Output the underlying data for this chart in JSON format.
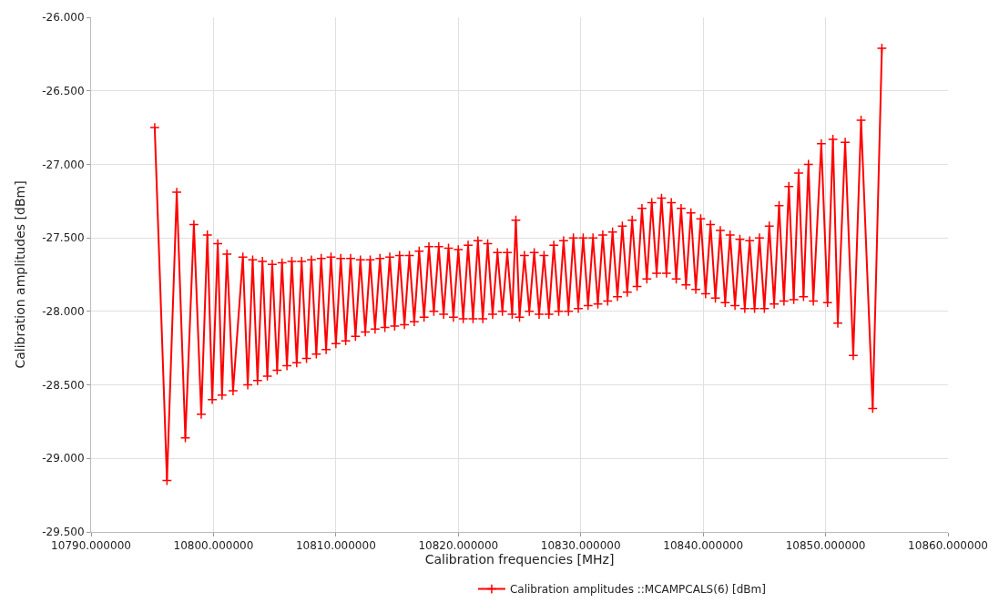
{
  "chart_data": {
    "type": "line",
    "xlabel": "Calibration frequencies [MHz]",
    "ylabel": "Calibration amplitudes [dBm]",
    "xlim": [
      10790,
      10860
    ],
    "xticks": [
      {
        "value": 10790,
        "label": "10790.000000"
      },
      {
        "value": 10800,
        "label": "10800.000000"
      },
      {
        "value": 10810,
        "label": "10810.000000"
      },
      {
        "value": 10820,
        "label": "10820.000000"
      },
      {
        "value": 10830,
        "label": "10830.000000"
      },
      {
        "value": 10840,
        "label": "10840.000000"
      },
      {
        "value": 10850,
        "label": "10850.000000"
      },
      {
        "value": 10860,
        "label": "10860.000000"
      }
    ],
    "ylim": [
      -29.5,
      -26
    ],
    "yticks": [
      {
        "value": -29.5,
        "label": "-29.500"
      },
      {
        "value": -29,
        "label": "-29.000"
      },
      {
        "value": -28.5,
        "label": "-28.500"
      },
      {
        "value": -28,
        "label": "-28.000"
      },
      {
        "value": -27.5,
        "label": "-27.500"
      },
      {
        "value": -27,
        "label": "-27.000"
      },
      {
        "value": -26.5,
        "label": "-26.500"
      },
      {
        "value": -26,
        "label": "-26.000"
      }
    ],
    "grid": true,
    "legend": "bottom",
    "marker": "cross",
    "line_style": "solid",
    "series": [
      {
        "name": "Calibration amplitudes ::MCAMPCALS(6) [dBm]",
        "color": "#ff0000",
        "x": [
          10795.2,
          10796.2,
          10797.0,
          10797.7,
          10798.4,
          10799.0,
          10799.5,
          10799.9,
          10800.35,
          10800.7,
          10801.1,
          10801.6,
          10802.4,
          10802.8,
          10803.2,
          10803.6,
          10804.0,
          10804.4,
          10804.8,
          10805.2,
          10805.6,
          10806.0,
          10806.4,
          10806.8,
          10807.2,
          10807.6,
          10808.0,
          10808.4,
          10808.8,
          10809.2,
          10809.6,
          10810.0,
          10810.4,
          10810.8,
          10811.2,
          10811.6,
          10812.0,
          10812.4,
          10812.8,
          10813.2,
          10813.6,
          10814.0,
          10814.4,
          10814.8,
          10815.2,
          10815.6,
          10816.0,
          10816.4,
          10816.8,
          10817.2,
          10817.6,
          10818.0,
          10818.4,
          10818.8,
          10819.2,
          10819.6,
          10820.0,
          10820.4,
          10820.8,
          10821.2,
          10821.6,
          10822.0,
          10822.4,
          10822.8,
          10823.2,
          10823.6,
          10824.0,
          10824.4,
          10824.7,
          10825.0,
          10825.4,
          10825.8,
          10826.2,
          10826.6,
          10827.0,
          10827.4,
          10827.8,
          10828.2,
          10828.6,
          10829.0,
          10829.4,
          10829.8,
          10830.2,
          10830.6,
          10831.0,
          10831.4,
          10831.8,
          10832.2,
          10832.6,
          10833.0,
          10833.4,
          10833.8,
          10834.2,
          10834.6,
          10835.0,
          10835.4,
          10835.8,
          10836.2,
          10836.6,
          10837.0,
          10837.4,
          10837.8,
          10838.2,
          10838.6,
          10839.0,
          10839.4,
          10839.8,
          10840.2,
          10840.6,
          10841.0,
          10841.4,
          10841.8,
          10842.2,
          10842.6,
          10843.0,
          10843.4,
          10843.8,
          10844.2,
          10844.6,
          10845.0,
          10845.4,
          10845.8,
          10846.2,
          10846.6,
          10847.0,
          10847.4,
          10847.8,
          10848.2,
          10848.6,
          10849.0,
          10849.65,
          10850.16,
          10850.6,
          10851.0,
          10851.6,
          10852.26,
          10852.9,
          10853.85,
          10854.6
        ],
        "values": [
          -26.75,
          -29.15,
          -27.19,
          -28.86,
          -27.41,
          -28.7,
          -27.48,
          -28.6,
          -27.54,
          -28.57,
          -27.61,
          -28.54,
          -27.63,
          -28.5,
          -27.65,
          -28.47,
          -27.66,
          -28.44,
          -27.68,
          -28.4,
          -27.67,
          -28.37,
          -27.66,
          -28.35,
          -27.66,
          -28.32,
          -27.65,
          -28.29,
          -27.64,
          -28.26,
          -27.63,
          -28.22,
          -27.64,
          -28.2,
          -27.64,
          -28.17,
          -27.65,
          -28.14,
          -27.65,
          -28.12,
          -27.64,
          -28.11,
          -27.63,
          -28.1,
          -27.62,
          -28.09,
          -27.62,
          -28.07,
          -27.59,
          -28.04,
          -27.56,
          -28.0,
          -27.56,
          -28.02,
          -27.57,
          -28.04,
          -27.58,
          -28.05,
          -27.55,
          -28.05,
          -27.52,
          -28.05,
          -27.54,
          -28.02,
          -27.6,
          -28.0,
          -27.6,
          -28.02,
          -27.38,
          -28.04,
          -27.62,
          -28.0,
          -27.6,
          -28.02,
          -27.62,
          -28.02,
          -27.55,
          -28.0,
          -27.52,
          -28.0,
          -27.5,
          -27.98,
          -27.5,
          -27.96,
          -27.5,
          -27.95,
          -27.48,
          -27.93,
          -27.46,
          -27.9,
          -27.42,
          -27.87,
          -27.38,
          -27.83,
          -27.3,
          -27.78,
          -27.26,
          -27.74,
          -27.23,
          -27.74,
          -27.26,
          -27.78,
          -27.3,
          -27.82,
          -27.33,
          -27.85,
          -27.37,
          -27.88,
          -27.41,
          -27.91,
          -27.45,
          -27.94,
          -27.48,
          -27.96,
          -27.51,
          -27.98,
          -27.52,
          -27.98,
          -27.5,
          -27.98,
          -27.42,
          -27.95,
          -27.28,
          -27.93,
          -27.15,
          -27.92,
          -27.06,
          -27.9,
          -27.0,
          -27.93,
          -26.86,
          -27.94,
          -26.83,
          -28.08,
          -26.85,
          -28.3,
          -26.7,
          -28.66,
          -26.21
        ]
      }
    ]
  }
}
